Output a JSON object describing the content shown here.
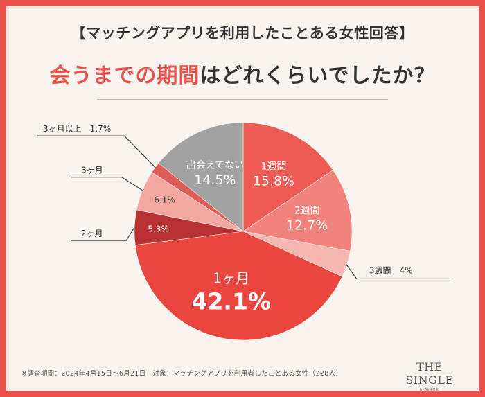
{
  "header": {
    "subtitle": "【マッチングアプリを利用したことある女性回答】",
    "title_part1": "会うまでの期間",
    "title_part2": "はどれくらいでしたか？"
  },
  "footnote": "※調査期間：2024年4月15日～6月21日　対象：マッチングアプリを利用者したことある女性（228人）",
  "logo": {
    "main": "THE SINGLE",
    "sub": "by 独身日和"
  },
  "colors": {
    "background": "#e8524a",
    "card": "#f8f3ee",
    "accent": "#e8524a"
  },
  "chart_data": {
    "type": "pie",
    "start_angle_deg": 0,
    "direction": "clockwise",
    "slices": [
      {
        "label": "1週間",
        "value": 15.8,
        "value_text": "15.8%",
        "color": "#ec5c55",
        "label_style": "inside",
        "text_color": "#ffffff"
      },
      {
        "label": "2週間",
        "value": 12.7,
        "value_text": "12.7%",
        "color": "#f0847c",
        "label_style": "inside",
        "text_color": "#ffffff"
      },
      {
        "label": "3週間",
        "value": 4,
        "value_text": "4%",
        "color": "#f6b7b0",
        "label_style": "callout",
        "text_color": "#333333"
      },
      {
        "label": "1ヶ月",
        "value": 42.1,
        "value_text": "42.1%",
        "color": "#e8463f",
        "label_style": "inside-large",
        "text_color": "#ffffff"
      },
      {
        "label": "2ヶ月",
        "value": 5.3,
        "value_text": "5.3%",
        "color": "#b83232",
        "label_style": "callout-split",
        "text_color": "#ffffff"
      },
      {
        "label": "3ヶ月",
        "value": 6.1,
        "value_text": "6.1%",
        "color": "#f2a7a1",
        "label_style": "callout-split",
        "text_color": "#333333"
      },
      {
        "label": "3ヶ月以上",
        "value": 1.7,
        "value_text": "1.7%",
        "color": "#dc5d57",
        "label_style": "callout",
        "text_color": "#333333"
      },
      {
        "label": "出会えてない",
        "value": 14.5,
        "value_text": "14.5%",
        "color": "#a3a2a2",
        "label_style": "inside",
        "text_color": "#ffffff"
      }
    ]
  }
}
